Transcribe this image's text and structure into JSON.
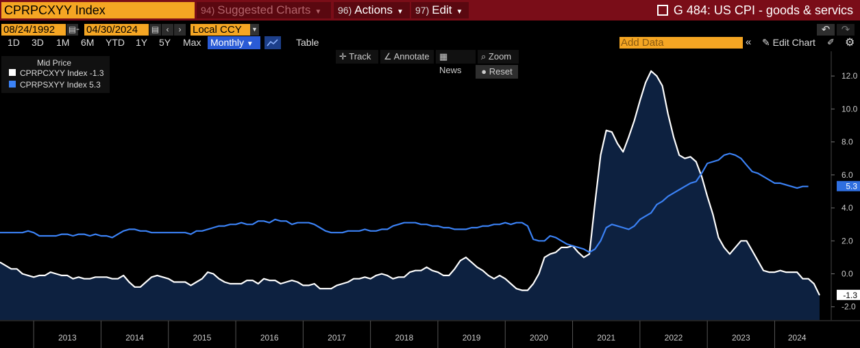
{
  "header": {
    "ticker": "CPRPCXYY Index",
    "suggested": {
      "num": "94)",
      "label": "Suggested Charts"
    },
    "actions": {
      "num": "96)",
      "label": "Actions"
    },
    "edit": {
      "num": "97)",
      "label": "Edit"
    },
    "title": "G 484: US CPI - goods & servics"
  },
  "controls": {
    "start_date": "08/24/1992",
    "end_date": "04/30/2024",
    "currency": "Local CCY",
    "periods": [
      "1D",
      "3D",
      "1M",
      "6M",
      "YTD",
      "1Y",
      "5Y",
      "Max"
    ],
    "frequency": "Monthly",
    "table_label": "Table",
    "add_data_placeholder": "Add Data",
    "edit_chart_label": "Edit Chart"
  },
  "tools": {
    "track": "Track",
    "annotate": "Annotate",
    "news": "News",
    "zoom": "Zoom",
    "reset": "Reset"
  },
  "icons": [
    "calendar-icon",
    "chevron-left-icon",
    "chevron-right-icon",
    "undo-icon",
    "redo-icon",
    "line-chart-icon",
    "double-chevron-left-icon",
    "pencil-icon",
    "gear-icon",
    "crosshair-icon",
    "annotate-icon",
    "news-icon",
    "search-icon",
    "external-link-icon"
  ],
  "colors": {
    "goods": "#ffffff",
    "services": "#3b82f6",
    "goods_fill": "#0d2140",
    "accent": "#f5a623",
    "header_bg": "#7a0d18"
  },
  "chart_data": {
    "type": "line",
    "legend_title": "Mid Price",
    "legend_placement": "top-left",
    "x_start": "2012-07",
    "x_end": "2024-04",
    "x_ticks": [
      "2013",
      "2014",
      "2015",
      "2016",
      "2017",
      "2018",
      "2019",
      "2020",
      "2021",
      "2022",
      "2023",
      "2024"
    ],
    "y_ticks": [
      "-2.0",
      "0.0",
      "2.0",
      "4.0",
      "6.0",
      "8.0",
      "10.0",
      "12.0"
    ],
    "ylim": [
      -2.8,
      13.5
    ],
    "series": [
      {
        "name": "CPRPCXYY Index",
        "last_value": "-1.3",
        "last_label": "-1.3",
        "fill": true,
        "values": [
          0.7,
          0.5,
          0.3,
          0.3,
          0.0,
          -0.1,
          -0.2,
          -0.1,
          -0.1,
          0.1,
          0.0,
          -0.1,
          -0.1,
          -0.3,
          -0.2,
          -0.3,
          -0.3,
          -0.2,
          -0.2,
          -0.2,
          -0.3,
          -0.3,
          -0.1,
          -0.5,
          -0.8,
          -0.8,
          -0.5,
          -0.2,
          -0.1,
          -0.2,
          -0.3,
          -0.5,
          -0.5,
          -0.5,
          -0.7,
          -0.5,
          -0.3,
          0.1,
          0.0,
          -0.3,
          -0.5,
          -0.6,
          -0.6,
          -0.6,
          -0.4,
          -0.4,
          -0.6,
          -0.3,
          -0.4,
          -0.4,
          -0.6,
          -0.5,
          -0.4,
          -0.5,
          -0.7,
          -0.7,
          -0.6,
          -0.9,
          -0.9,
          -0.9,
          -0.7,
          -0.6,
          -0.5,
          -0.3,
          -0.3,
          -0.2,
          -0.3,
          -0.1,
          0.0,
          -0.1,
          -0.3,
          -0.2,
          -0.2,
          0.1,
          0.2,
          0.2,
          0.4,
          0.2,
          0.1,
          -0.1,
          -0.1,
          0.3,
          0.8,
          1.0,
          0.7,
          0.4,
          0.2,
          -0.1,
          -0.3,
          -0.1,
          -0.3,
          -0.6,
          -0.9,
          -1.0,
          -1.0,
          -0.6,
          0.0,
          1.0,
          1.2,
          1.3,
          1.6,
          1.6,
          1.7,
          1.3,
          1.0,
          1.2,
          4.3,
          7.2,
          8.7,
          8.6,
          7.9,
          7.4,
          8.3,
          9.3,
          10.5,
          11.6,
          12.3,
          12.0,
          11.4,
          9.7,
          8.3,
          7.2,
          7.0,
          7.1,
          6.8,
          5.9,
          4.7,
          3.6,
          2.2,
          1.6,
          1.2,
          1.6,
          2.0,
          2.0,
          1.4,
          0.8,
          0.2,
          0.1,
          0.1,
          0.2,
          0.1,
          0.1,
          0.1,
          -0.3,
          -0.3,
          -0.6,
          -1.3
        ]
      },
      {
        "name": "CPRPSXYY Index",
        "last_value": "5.3",
        "last_label": "5.3",
        "fill": false,
        "values": [
          2.5,
          2.5,
          2.5,
          2.5,
          2.5,
          2.6,
          2.5,
          2.3,
          2.3,
          2.3,
          2.3,
          2.4,
          2.4,
          2.3,
          2.4,
          2.4,
          2.3,
          2.4,
          2.3,
          2.3,
          2.2,
          2.4,
          2.6,
          2.7,
          2.7,
          2.6,
          2.6,
          2.5,
          2.5,
          2.5,
          2.5,
          2.5,
          2.5,
          2.5,
          2.4,
          2.6,
          2.6,
          2.7,
          2.8,
          2.9,
          2.9,
          3.0,
          3.0,
          3.1,
          3.0,
          3.0,
          3.2,
          3.2,
          3.1,
          3.3,
          3.2,
          3.2,
          3.0,
          3.1,
          3.1,
          3.1,
          3.0,
          2.8,
          2.6,
          2.5,
          2.5,
          2.5,
          2.6,
          2.6,
          2.6,
          2.7,
          2.6,
          2.6,
          2.7,
          2.7,
          2.9,
          3.0,
          3.1,
          3.1,
          3.1,
          3.0,
          3.0,
          2.9,
          2.9,
          2.8,
          2.8,
          2.7,
          2.7,
          2.7,
          2.8,
          2.8,
          2.9,
          2.9,
          3.0,
          3.0,
          3.1,
          3.0,
          3.1,
          3.1,
          2.9,
          2.1,
          2.0,
          2.0,
          2.3,
          2.2,
          2.0,
          1.8,
          1.7,
          1.6,
          1.5,
          1.3,
          1.5,
          2.0,
          2.8,
          3.0,
          2.9,
          2.8,
          2.7,
          2.9,
          3.3,
          3.5,
          3.7,
          4.2,
          4.4,
          4.7,
          4.9,
          5.1,
          5.3,
          5.5,
          5.6,
          6.1,
          6.7,
          6.8,
          6.9,
          7.2,
          7.3,
          7.2,
          7.0,
          6.6,
          6.2,
          6.1,
          5.9,
          5.7,
          5.5,
          5.5,
          5.4,
          5.3,
          5.2,
          5.3,
          5.3
        ]
      }
    ]
  }
}
